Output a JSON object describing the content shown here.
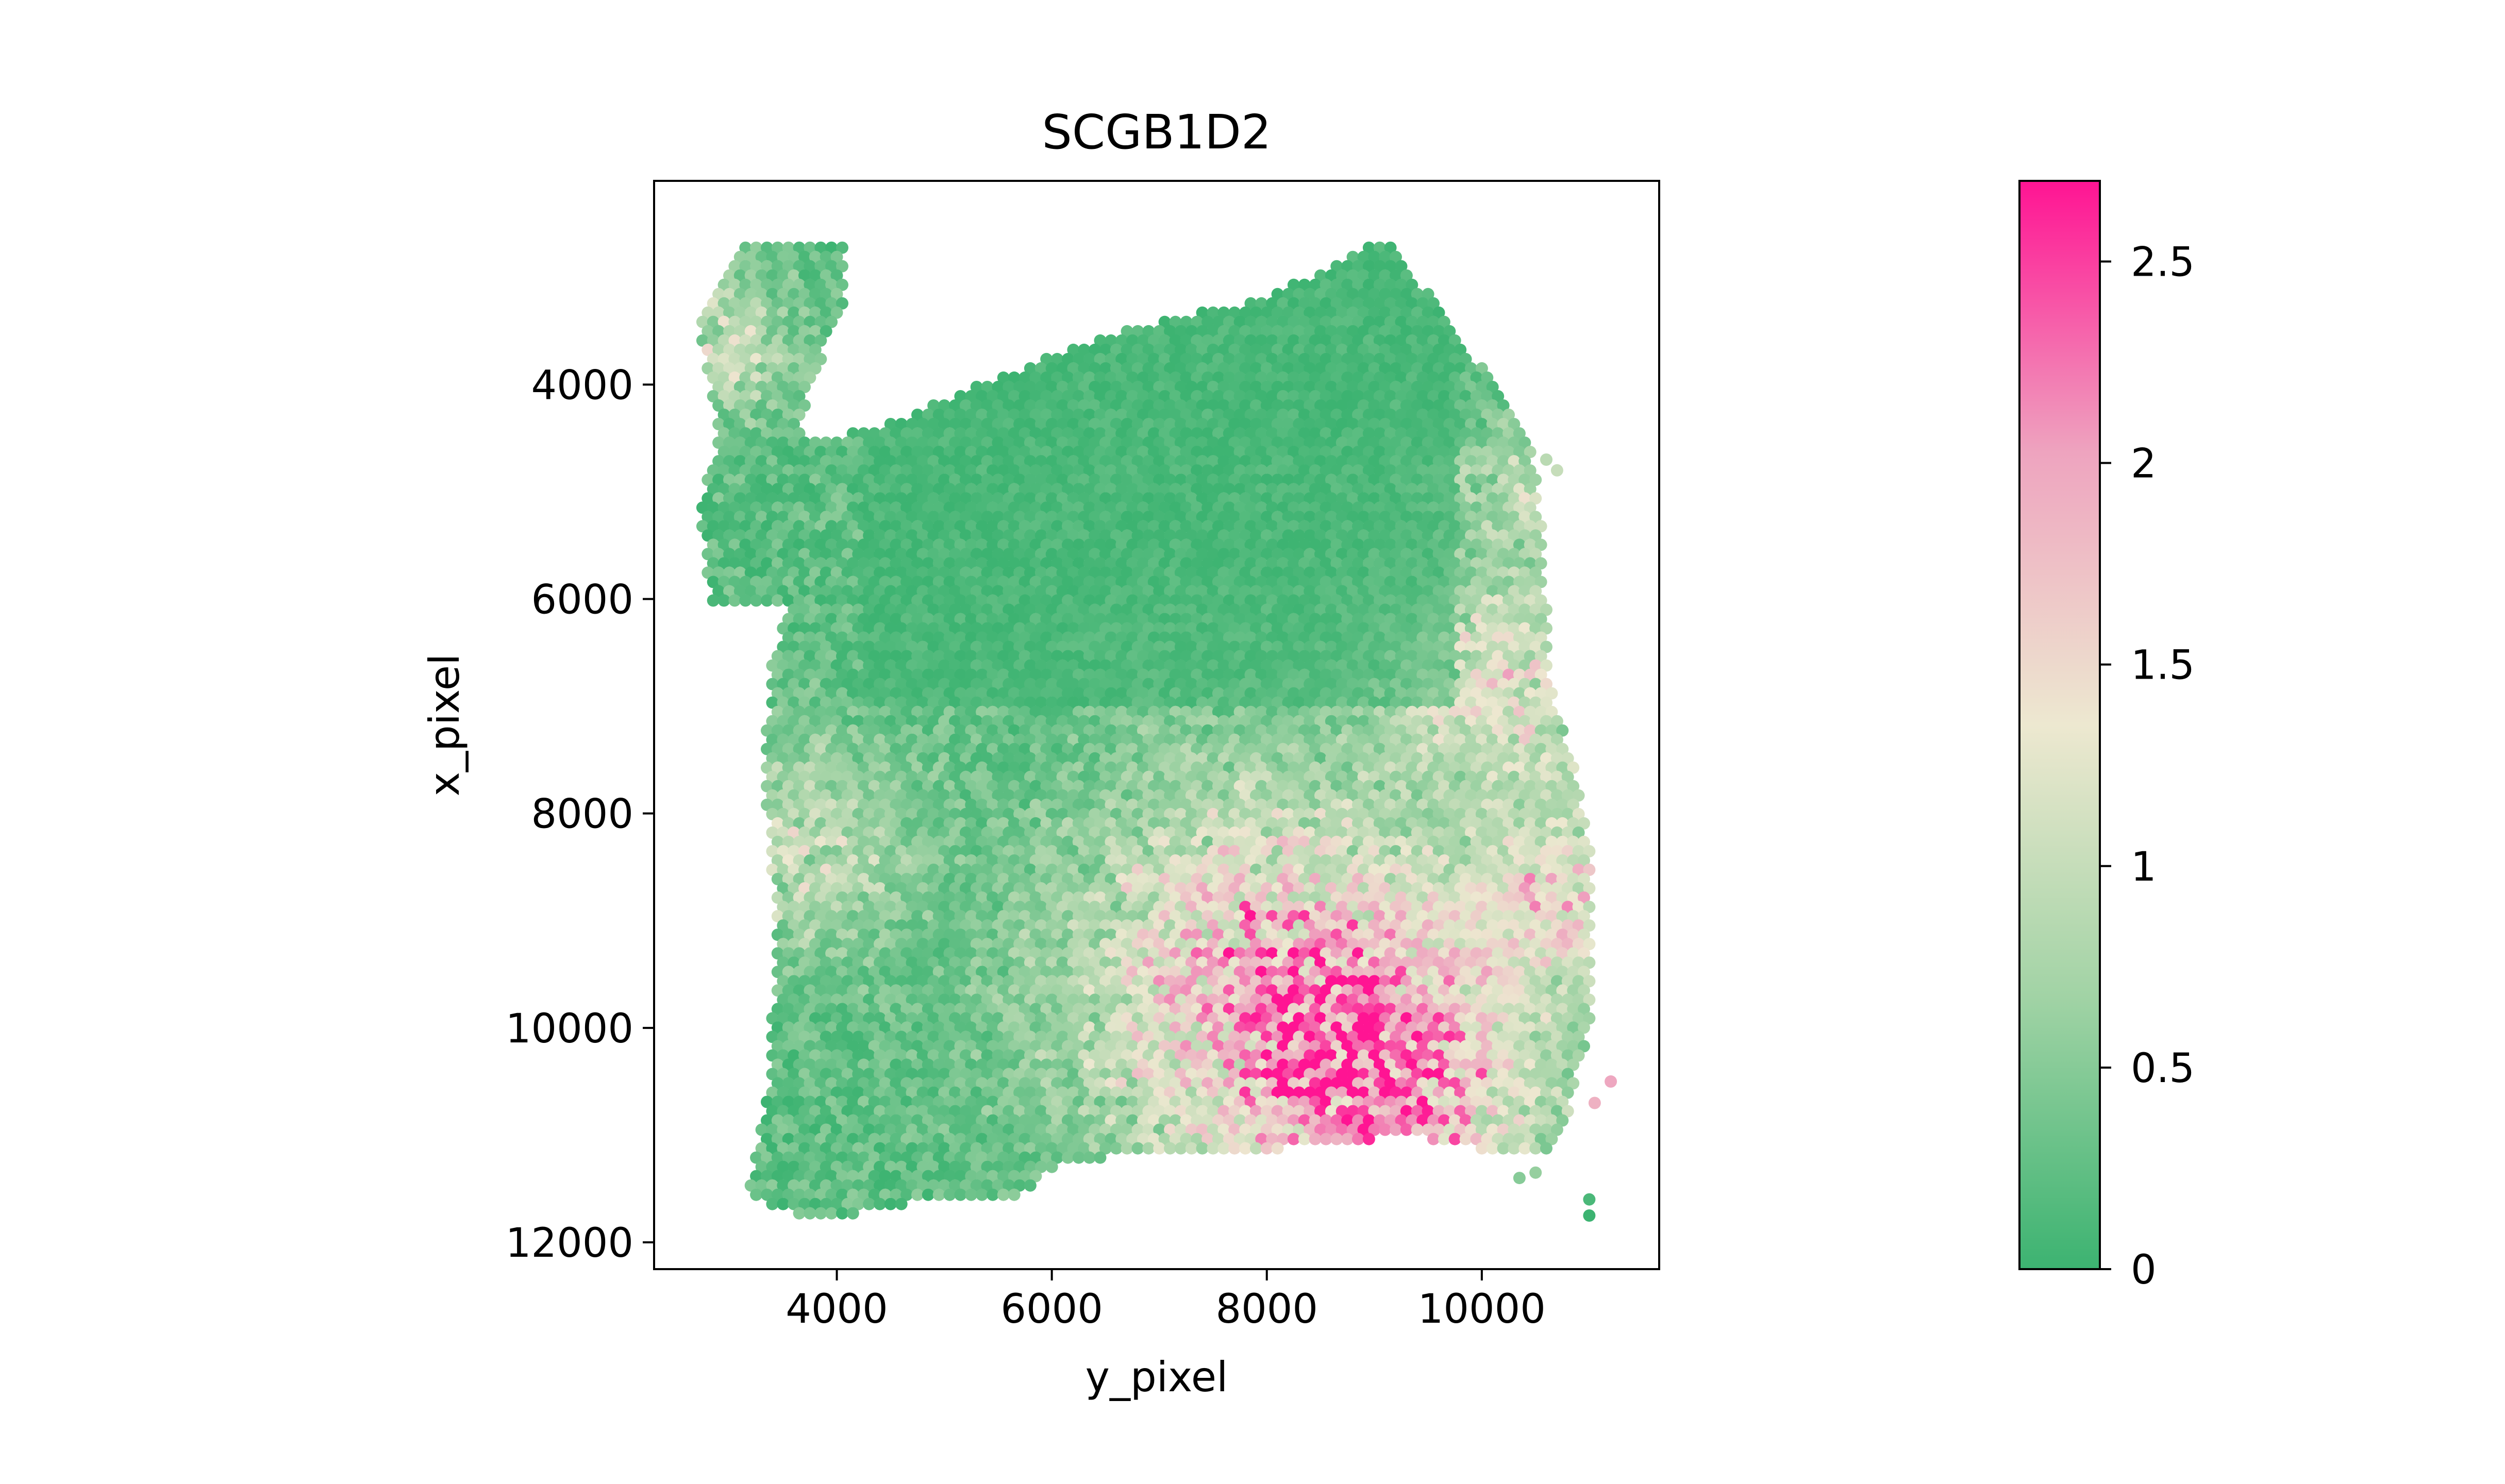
{
  "chart_data": {
    "type": "scatter",
    "title": "SCGB1D2",
    "xlabel": "y_pixel",
    "ylabel": "x_pixel",
    "xlim": [
      2300,
      11650
    ],
    "ylim": [
      12250,
      2100
    ],
    "y_inverted": true,
    "xticks": [
      4000,
      6000,
      8000,
      10000
    ],
    "xtick_labels": [
      "4000",
      "6000",
      "8000",
      "10000"
    ],
    "yticks": [
      4000,
      6000,
      8000,
      10000,
      12000
    ],
    "ytick_labels": [
      "4000",
      "6000",
      "8000",
      "10000",
      "12000"
    ],
    "grid": false,
    "colorbar": {
      "range": [
        0,
        2.7
      ],
      "ticks": [
        0,
        0.5,
        1,
        1.5,
        2,
        2.5
      ],
      "tick_labels": [
        "0",
        "0.5",
        "1",
        "1.5",
        "2",
        "2.5"
      ],
      "colors": [
        "#3cb371",
        "#a1d3a5",
        "#ede8d0",
        "#eea4bf",
        "#ff1493"
      ]
    },
    "spot_spacing": 100,
    "tissue_outline": [
      [
        2750,
        3250
      ],
      [
        3150,
        2700
      ],
      [
        4050,
        2700
      ],
      [
        4100,
        3200
      ],
      [
        3750,
        4000
      ],
      [
        3650,
        4550
      ],
      [
        4500,
        4350
      ],
      [
        5100,
        4100
      ],
      [
        6100,
        3700
      ],
      [
        7000,
        3400
      ],
      [
        8000,
        3200
      ],
      [
        8650,
        2850
      ],
      [
        9100,
        2650
      ],
      [
        9400,
        3000
      ],
      [
        9900,
        3700
      ],
      [
        10450,
        4500
      ],
      [
        10550,
        5200
      ],
      [
        10600,
        6100
      ],
      [
        10650,
        6800
      ],
      [
        10900,
        7700
      ],
      [
        11050,
        8600
      ],
      [
        11050,
        9800
      ],
      [
        10900,
        10400
      ],
      [
        10800,
        10900
      ],
      [
        10550,
        11200
      ],
      [
        10100,
        11150
      ],
      [
        9300,
        11000
      ],
      [
        8400,
        11100
      ],
      [
        7400,
        11200
      ],
      [
        6600,
        11200
      ],
      [
        6100,
        11250
      ],
      [
        5650,
        11600
      ],
      [
        4500,
        11650
      ],
      [
        3950,
        11800
      ],
      [
        3450,
        11700
      ],
      [
        3150,
        11550
      ],
      [
        3350,
        10600
      ],
      [
        3450,
        9000
      ],
      [
        3300,
        7600
      ],
      [
        3400,
        6600
      ],
      [
        3550,
        6100
      ],
      [
        3300,
        6050
      ],
      [
        2850,
        6050
      ],
      [
        2700,
        5200
      ],
      [
        2900,
        4500
      ],
      [
        2750,
        3700
      ]
    ],
    "notch": [
      3700,
      4450,
      3650,
      6050
    ],
    "expression_hotspots": [
      {
        "x": 8050,
        "y": 9600,
        "weight": 2.0,
        "sd": 1300
      },
      {
        "x": 9300,
        "y": 10600,
        "weight": 1.6,
        "sd": 900
      },
      {
        "x": 10200,
        "y": 6800,
        "weight": 1.3,
        "sd": 700
      },
      {
        "x": 10800,
        "y": 8800,
        "weight": 1.3,
        "sd": 600
      },
      {
        "x": 3700,
        "y": 8300,
        "weight": 0.9,
        "sd": 700
      },
      {
        "x": 10450,
        "y": 5000,
        "weight": 0.8,
        "sd": 500
      },
      {
        "x": 2900,
        "y": 3600,
        "weight": 0.9,
        "sd": 500
      }
    ],
    "outlier_spots": [
      {
        "x": 10600,
        "y": 4700,
        "value": 0.9
      },
      {
        "x": 10700,
        "y": 4800,
        "value": 1.0
      },
      {
        "x": 11000,
        "y": 11600,
        "value": 0.1
      },
      {
        "x": 11000,
        "y": 11750,
        "value": 0.0
      },
      {
        "x": 11200,
        "y": 10500,
        "value": 2.0
      },
      {
        "x": 11050,
        "y": 10700,
        "value": 1.9
      },
      {
        "x": 10500,
        "y": 11350,
        "value": 0.6
      },
      {
        "x": 10350,
        "y": 11400,
        "value": 0.5
      }
    ]
  }
}
